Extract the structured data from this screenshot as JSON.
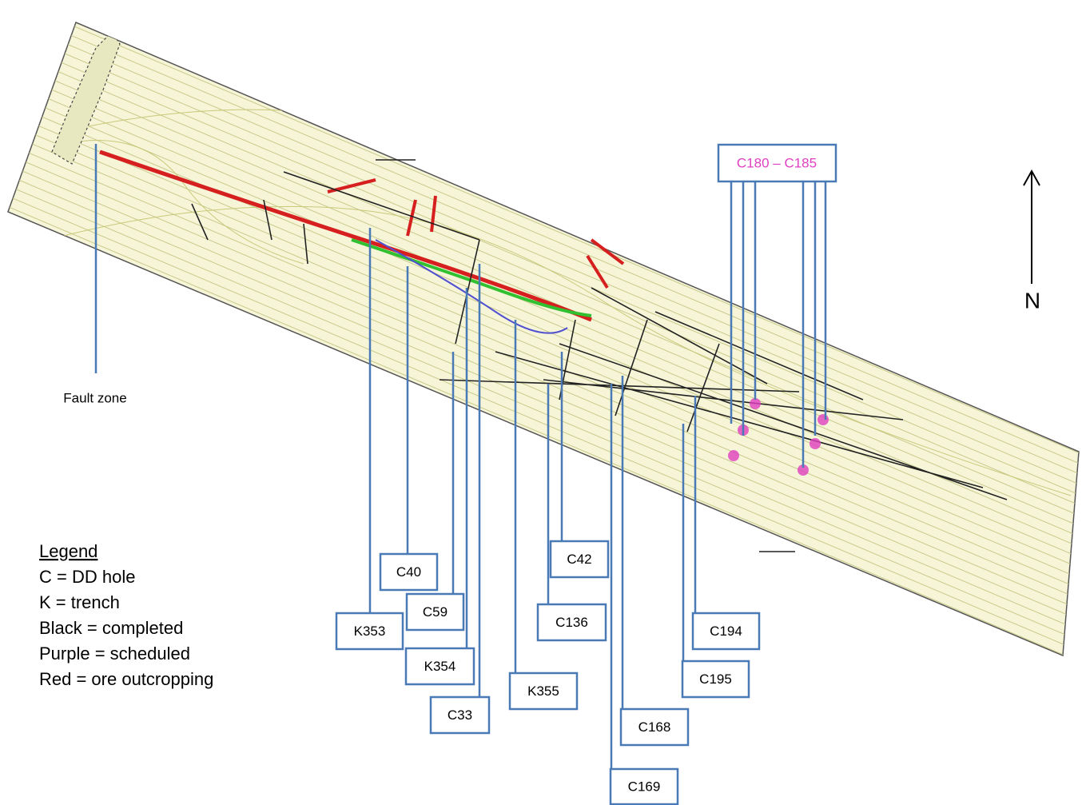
{
  "group_label": "C180 – C185",
  "callouts": [
    "C40",
    "C42",
    "C59",
    "K353",
    "C136",
    "C194",
    "K354",
    "K355",
    "C195",
    "C33",
    "C168",
    "C169"
  ],
  "fault_zone": "Fault zone",
  "north": "N",
  "legend": {
    "title": "Legend",
    "items": [
      "C = DD hole",
      "K = trench",
      "Black = completed",
      "Purple = scheduled",
      "Red = ore outcropping"
    ]
  }
}
